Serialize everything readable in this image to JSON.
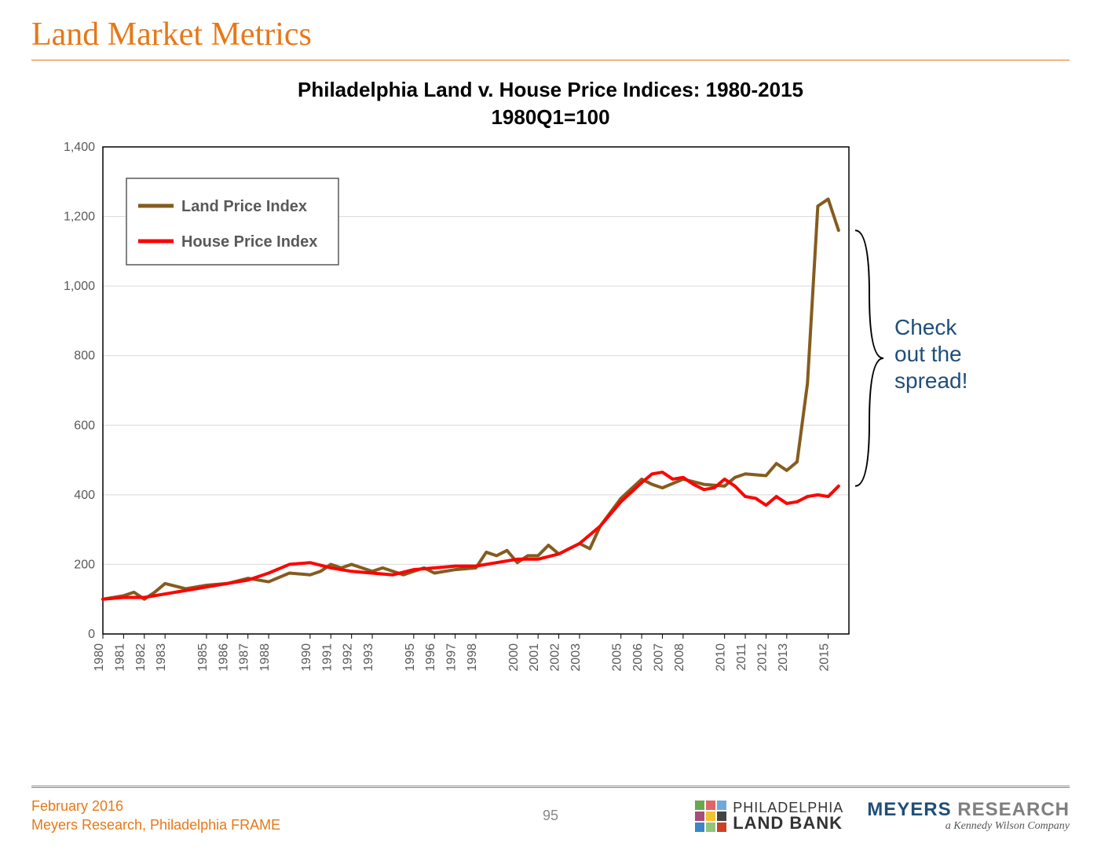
{
  "header": {
    "title": "Land Market Metrics",
    "title_color": "#e67817",
    "rule_color": "#e67817"
  },
  "chart": {
    "type": "line",
    "title_line1": "Philadelphia Land v. House Price Indices: 1980-2015",
    "title_line2": "1980Q1=100",
    "title_fontsize": 26,
    "title_color": "#000000",
    "background_color": "#ffffff",
    "plot_border_color": "#000000",
    "grid_color": "#d9d9d9",
    "axis_font_color": "#595959",
    "axis_fontsize": 16,
    "xlim": [
      1980,
      2016
    ],
    "ylim": [
      0,
      1400
    ],
    "ytick_step": 200,
    "yticks": [
      0,
      200,
      400,
      600,
      800,
      1000,
      1200,
      1400
    ],
    "xticks": [
      1980,
      1981,
      1982,
      1983,
      1985,
      1986,
      1987,
      1988,
      1990,
      1991,
      1992,
      1993,
      1995,
      1996,
      1997,
      1998,
      2000,
      2001,
      2002,
      2003,
      2005,
      2006,
      2007,
      2008,
      2010,
      2011,
      2012,
      2013,
      2015
    ],
    "line_width": 4,
    "legend": {
      "border_color": "#595959",
      "bg": "#ffffff",
      "font_color": "#595959",
      "fontsize": 20,
      "title_weight": 700,
      "items": [
        {
          "label": "Land Price Index",
          "color": "#855c1f"
        },
        {
          "label": "House Price Index",
          "color": "#ff0000"
        }
      ]
    },
    "series": {
      "land": {
        "color": "#855c1f",
        "x": [
          1980,
          1981,
          1981.5,
          1982,
          1982.5,
          1983,
          1984,
          1985,
          1986,
          1987,
          1988,
          1989,
          1990,
          1990.5,
          1991,
          1991.5,
          1992,
          1992.5,
          1993,
          1993.5,
          1994,
          1994.5,
          1995,
          1995.5,
          1996,
          1997,
          1998,
          1998.5,
          1999,
          1999.5,
          2000,
          2000.5,
          2001,
          2001.5,
          2002,
          2002.5,
          2003,
          2003.5,
          2004,
          2005,
          2006,
          2006.5,
          2007,
          2008,
          2009,
          2010,
          2010.5,
          2011,
          2012,
          2012.5,
          2013,
          2013.5,
          2014,
          2014.5,
          2015,
          2015.5
        ],
        "y": [
          100,
          110,
          120,
          100,
          120,
          145,
          130,
          140,
          145,
          160,
          150,
          175,
          170,
          180,
          200,
          190,
          200,
          190,
          180,
          190,
          180,
          170,
          180,
          190,
          175,
          185,
          190,
          235,
          225,
          240,
          205,
          225,
          225,
          255,
          230,
          245,
          260,
          245,
          310,
          390,
          445,
          430,
          420,
          445,
          430,
          425,
          450,
          460,
          455,
          490,
          470,
          495,
          720,
          1230,
          1250,
          1160
        ]
      },
      "house": {
        "color": "#ff0000",
        "x": [
          1980,
          1981,
          1982,
          1983,
          1984,
          1985,
          1986,
          1987,
          1988,
          1989,
          1990,
          1991,
          1992,
          1993,
          1994,
          1995,
          1996,
          1997,
          1998,
          1999,
          2000,
          2001,
          2002,
          2003,
          2004,
          2005,
          2006,
          2006.5,
          2007,
          2007.5,
          2008,
          2008.5,
          2009,
          2009.5,
          2010,
          2010.5,
          2011,
          2011.5,
          2012,
          2012.5,
          2013,
          2013.5,
          2014,
          2014.5,
          2015,
          2015.5
        ],
        "y": [
          100,
          105,
          105,
          115,
          125,
          135,
          145,
          155,
          175,
          200,
          205,
          190,
          180,
          175,
          170,
          185,
          190,
          195,
          195,
          205,
          215,
          215,
          230,
          260,
          310,
          380,
          435,
          460,
          465,
          445,
          450,
          430,
          415,
          420,
          445,
          425,
          395,
          390,
          370,
          395,
          375,
          380,
          395,
          400,
          395,
          425
        ]
      }
    },
    "annotation": {
      "text_l1": "Check",
      "text_l2": "out the",
      "text_l3": "spread!",
      "color": "#1f4e79",
      "fontsize": 28,
      "bracket_color": "#000000"
    }
  },
  "footer": {
    "date": "February 2016",
    "source": "Meyers Research, Philadelphia FRAME",
    "text_color": "#e67817",
    "page_number": "95",
    "plb_top": "PHILADELPHIA",
    "plb_bot": "LAND BANK",
    "plb_colors": [
      "#6aa84f",
      "#e06666",
      "#6fa8dc",
      "#a64d79",
      "#f1c232",
      "#444444",
      "#3d85c6",
      "#93c47d",
      "#cc4125"
    ],
    "mr_name_a": "MEYERS",
    "mr_name_b": " RESEARCH",
    "mr_color_a": "#1f4e79",
    "mr_color_b": "#7f7f7f",
    "mr_sub": "a Kennedy Wilson Company"
  }
}
